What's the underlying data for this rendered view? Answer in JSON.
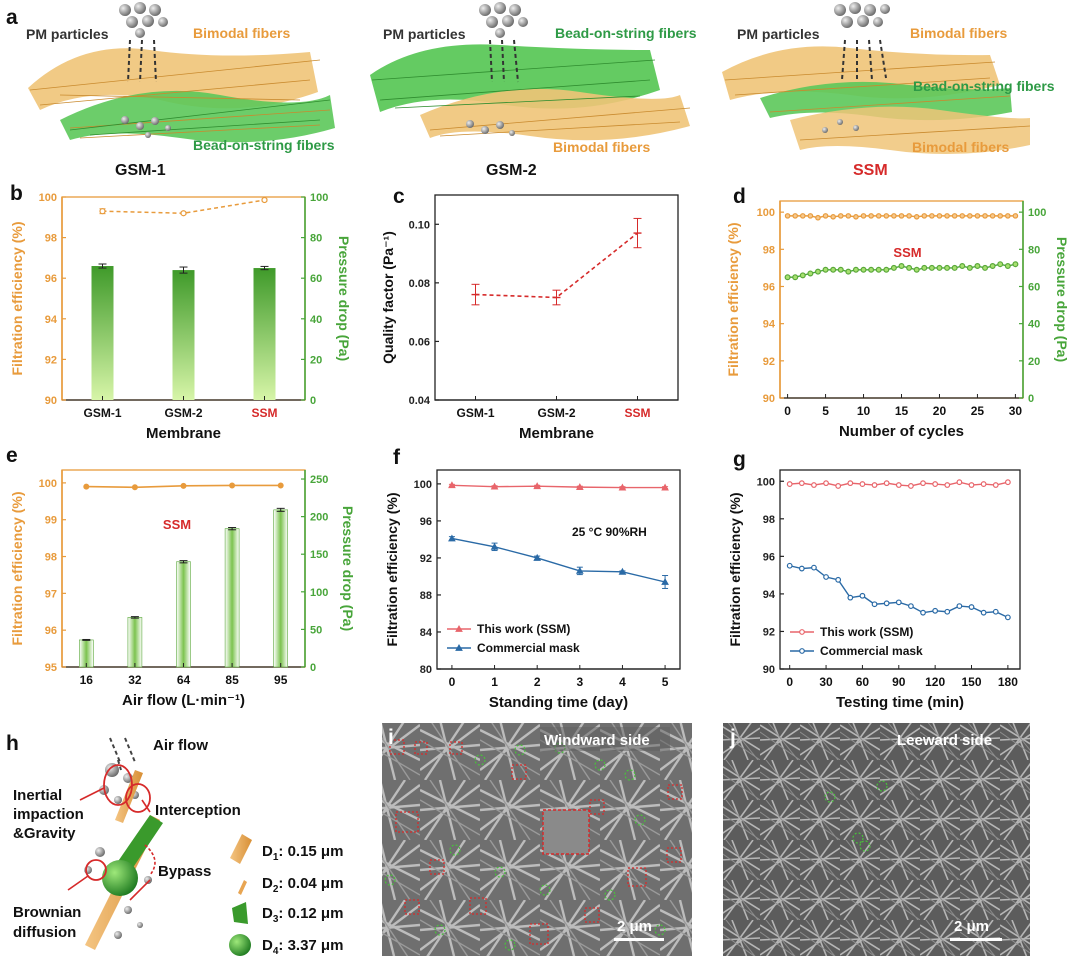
{
  "colors": {
    "orange": "#e89b3c",
    "green": "#48a53a",
    "red": "#d62a2a",
    "blue": "#2a6aa6",
    "pink": "#e8656b",
    "lightgreen": "#a7e070",
    "dark": "#111111"
  },
  "panel_a": {
    "letter": "a",
    "scenes": [
      {
        "pm_label": "PM particles",
        "top_label": "Bimodal fibers",
        "top_color": "#e89b3c",
        "bottom_label": "Bead-on-string fibers",
        "bottom_color": "#2e9a46",
        "name": "GSM-1",
        "name_color": "#111111"
      },
      {
        "pm_label": "PM particles",
        "top_label": "Bead-on-string fibers",
        "top_color": "#2e9a46",
        "bottom_label": "Bimodal fibers",
        "bottom_color": "#e89b3c",
        "name": "GSM-2",
        "name_color": "#111111"
      },
      {
        "pm_label": "PM particles",
        "top_label": "Bimodal fibers",
        "top_color": "#e89b3c",
        "middle_label": "Bead-on-string fibers",
        "middle_color": "#2e9a46",
        "bottom_label": "Bimodal fibers",
        "bottom_color": "#e89b3c",
        "name": "SSM",
        "name_color": "#d62a2a"
      }
    ]
  },
  "chart_data": [
    {
      "id": "b",
      "type": "bar",
      "categories": [
        "GSM-1",
        "GSM-2",
        "SSM"
      ],
      "category_colors": [
        "#111111",
        "#111111",
        "#d62a2a"
      ],
      "xlabel": "Membrane",
      "ylabel": "Filtration efficiency (%)",
      "ylabel_right": "Pressure drop (Pa)",
      "ylim": [
        90,
        100
      ],
      "yticks": [
        "90",
        "92",
        "94",
        "96",
        "98",
        "100"
      ],
      "ylim_right": [
        0,
        100
      ],
      "yticks_right": [
        "0",
        "20",
        "40",
        "60",
        "80",
        "100"
      ],
      "series": [
        {
          "name": "Filtration efficiency",
          "kind": "line",
          "axis": "left",
          "values": [
            99.3,
            99.2,
            99.85
          ],
          "errors": [
            0.12,
            0.05,
            0.05
          ]
        },
        {
          "name": "Pressure drop",
          "kind": "bar",
          "axis": "right",
          "values": [
            66,
            64,
            65
          ],
          "errors": [
            1.0,
            1.5,
            0.8
          ]
        }
      ]
    },
    {
      "id": "c",
      "type": "line",
      "categories": [
        "GSM-1",
        "GSM-2",
        "SSM"
      ],
      "category_colors": [
        "#111111",
        "#111111",
        "#d62a2a"
      ],
      "xlabel": "Membrane",
      "ylabel": "Quality factor (Pa⁻¹)",
      "ylim": [
        0.04,
        0.11
      ],
      "yticks": [
        "0.04",
        "0.06",
        "0.08",
        "0.10"
      ],
      "series": [
        {
          "name": "Quality factor",
          "values": [
            0.076,
            0.075,
            0.097
          ],
          "errors": [
            0.0035,
            0.0025,
            0.005
          ]
        }
      ]
    },
    {
      "id": "d",
      "type": "line",
      "xlabel": "Number of cycles",
      "ylabel": "Filtration efficiency (%)",
      "ylabel_right": "Pressure drop (Pa)",
      "annotation": "SSM",
      "xlim": [
        -1,
        31
      ],
      "xticks": [
        "0",
        "5",
        "10",
        "15",
        "20",
        "25",
        "30"
      ],
      "ylim": [
        90,
        100.6
      ],
      "yticks": [
        "90",
        "92",
        "94",
        "96",
        "98",
        "100"
      ],
      "ylim_right": [
        0,
        106
      ],
      "yticks_right": [
        "0",
        "20",
        "40",
        "60",
        "80",
        "100"
      ],
      "series": [
        {
          "name": "Filtration efficiency",
          "axis": "left",
          "x": [
            0,
            1,
            2,
            3,
            4,
            5,
            6,
            7,
            8,
            9,
            10,
            11,
            12,
            13,
            14,
            15,
            16,
            17,
            18,
            19,
            20,
            21,
            22,
            23,
            24,
            25,
            26,
            27,
            28,
            29,
            30
          ],
          "values": [
            99.8,
            99.8,
            99.8,
            99.8,
            99.7,
            99.8,
            99.75,
            99.8,
            99.8,
            99.75,
            99.8,
            99.8,
            99.8,
            99.8,
            99.8,
            99.8,
            99.8,
            99.75,
            99.8,
            99.8,
            99.8,
            99.8,
            99.8,
            99.8,
            99.8,
            99.8,
            99.8,
            99.8,
            99.8,
            99.8,
            99.8
          ]
        },
        {
          "name": "Pressure drop",
          "axis": "right",
          "x": [
            0,
            1,
            2,
            3,
            4,
            5,
            6,
            7,
            8,
            9,
            10,
            11,
            12,
            13,
            14,
            15,
            16,
            17,
            18,
            19,
            20,
            21,
            22,
            23,
            24,
            25,
            26,
            27,
            28,
            29,
            30
          ],
          "values": [
            65,
            65,
            66,
            67,
            68,
            69,
            69,
            69,
            68,
            69,
            69,
            69,
            69,
            69,
            70,
            71,
            70,
            69,
            70,
            70,
            70,
            70,
            70,
            71,
            70,
            71,
            70,
            71,
            72,
            71,
            72
          ]
        }
      ]
    },
    {
      "id": "e",
      "type": "bar",
      "categories": [
        "16",
        "32",
        "64",
        "85",
        "95"
      ],
      "xlabel": "Air flow (L·min⁻¹)",
      "ylabel": "Filtration efficiency (%)",
      "ylabel_right": "Pressure drop (Pa)",
      "annotation": "SSM",
      "ylim": [
        95,
        100.35
      ],
      "yticks": [
        "95",
        "96",
        "97",
        "98",
        "99",
        "100"
      ],
      "ylim_right": [
        0,
        262
      ],
      "yticks_right": [
        "0",
        "50",
        "100",
        "150",
        "200",
        "250"
      ],
      "series": [
        {
          "name": "Filtration efficiency",
          "kind": "line",
          "axis": "left",
          "values": [
            99.9,
            99.88,
            99.92,
            99.93,
            99.93
          ],
          "errors": [
            0,
            0,
            0,
            0,
            0
          ]
        },
        {
          "name": "Pressure drop",
          "kind": "bar",
          "axis": "right",
          "values": [
            36,
            66,
            140,
            184,
            209
          ],
          "errors": [
            0.6,
            1.0,
            1.5,
            1.5,
            2.0
          ]
        }
      ]
    },
    {
      "id": "f",
      "type": "line",
      "xlabel": "Standing time (day)",
      "ylabel": "Filtration efficiency (%)",
      "annotation": "25 °C   90%RH",
      "xlim": [
        -0.35,
        5.35
      ],
      "xticks": [
        "0",
        "1",
        "2",
        "3",
        "4",
        "5"
      ],
      "ylim": [
        80,
        101.5
      ],
      "yticks": [
        "80",
        "84",
        "88",
        "92",
        "96",
        "100"
      ],
      "series": [
        {
          "name": "This work (SSM)",
          "color": "#e8656b",
          "marker": "triangle",
          "x": [
            0,
            1,
            2,
            3,
            4,
            5
          ],
          "values": [
            99.85,
            99.7,
            99.75,
            99.65,
            99.6,
            99.6
          ],
          "errors": [
            0.1,
            0.1,
            0.1,
            0.1,
            0.1,
            0.1
          ]
        },
        {
          "name": "Commercial mask",
          "color": "#2a6aa6",
          "marker": "triangle",
          "x": [
            0,
            1,
            2,
            3,
            4,
            5
          ],
          "values": [
            94.1,
            93.2,
            92.0,
            90.6,
            90.5,
            89.4
          ],
          "errors": [
            0.2,
            0.4,
            0.2,
            0.4,
            0.1,
            0.7
          ]
        }
      ]
    },
    {
      "id": "g",
      "type": "line",
      "xlabel": "Testing time (min)",
      "ylabel": "Filtration efficiency (%)",
      "xlim": [
        -8,
        190
      ],
      "xticks": [
        "0",
        "30",
        "60",
        "90",
        "120",
        "150",
        "180"
      ],
      "ylim": [
        90,
        100.6
      ],
      "yticks": [
        "90",
        "92",
        "94",
        "96",
        "98",
        "100"
      ],
      "series": [
        {
          "name": "This work (SSM)",
          "color": "#e8656b",
          "marker": "circle",
          "x": [
            0,
            10,
            20,
            30,
            40,
            50,
            60,
            70,
            80,
            90,
            100,
            110,
            120,
            130,
            140,
            150,
            160,
            170,
            180
          ],
          "values": [
            99.85,
            99.9,
            99.8,
            99.9,
            99.75,
            99.9,
            99.85,
            99.8,
            99.9,
            99.8,
            99.75,
            99.9,
            99.85,
            99.8,
            99.95,
            99.8,
            99.85,
            99.8,
            99.95
          ]
        },
        {
          "name": "Commercial mask",
          "color": "#2a6aa6",
          "marker": "circle",
          "x": [
            0,
            10,
            20,
            30,
            40,
            50,
            60,
            70,
            80,
            90,
            100,
            110,
            120,
            130,
            140,
            150,
            160,
            170,
            180
          ],
          "values": [
            95.5,
            95.35,
            95.4,
            94.9,
            94.75,
            93.8,
            93.9,
            93.45,
            93.5,
            93.55,
            93.35,
            93.0,
            93.1,
            93.05,
            93.35,
            93.3,
            93.0,
            93.05,
            92.75
          ]
        }
      ]
    }
  ],
  "panel_h": {
    "letter": "h",
    "air_flow": "Air flow",
    "inertial_1": "Inertial",
    "inertial_2": "impaction",
    "inertial_3": "&Gravity",
    "interception": "Interception",
    "bypass": "Bypass",
    "brownian_1": "Brownian",
    "brownian_2": "diffusion",
    "legend": [
      {
        "sym": "D",
        "sub": "1",
        "value": ": 0.15 μm"
      },
      {
        "sym": "D",
        "sub": "2",
        "value": ": 0.04 μm"
      },
      {
        "sym": "D",
        "sub": "3",
        "value": ": 0.12 μm"
      },
      {
        "sym": "D",
        "sub": "4",
        "value": ": 3.37 μm"
      }
    ]
  },
  "panel_i": {
    "letter": "i",
    "title": "Windward side",
    "scale": "2 μm"
  },
  "panel_j": {
    "letter": "j",
    "title": "Leeward side",
    "scale": "2 μm"
  }
}
